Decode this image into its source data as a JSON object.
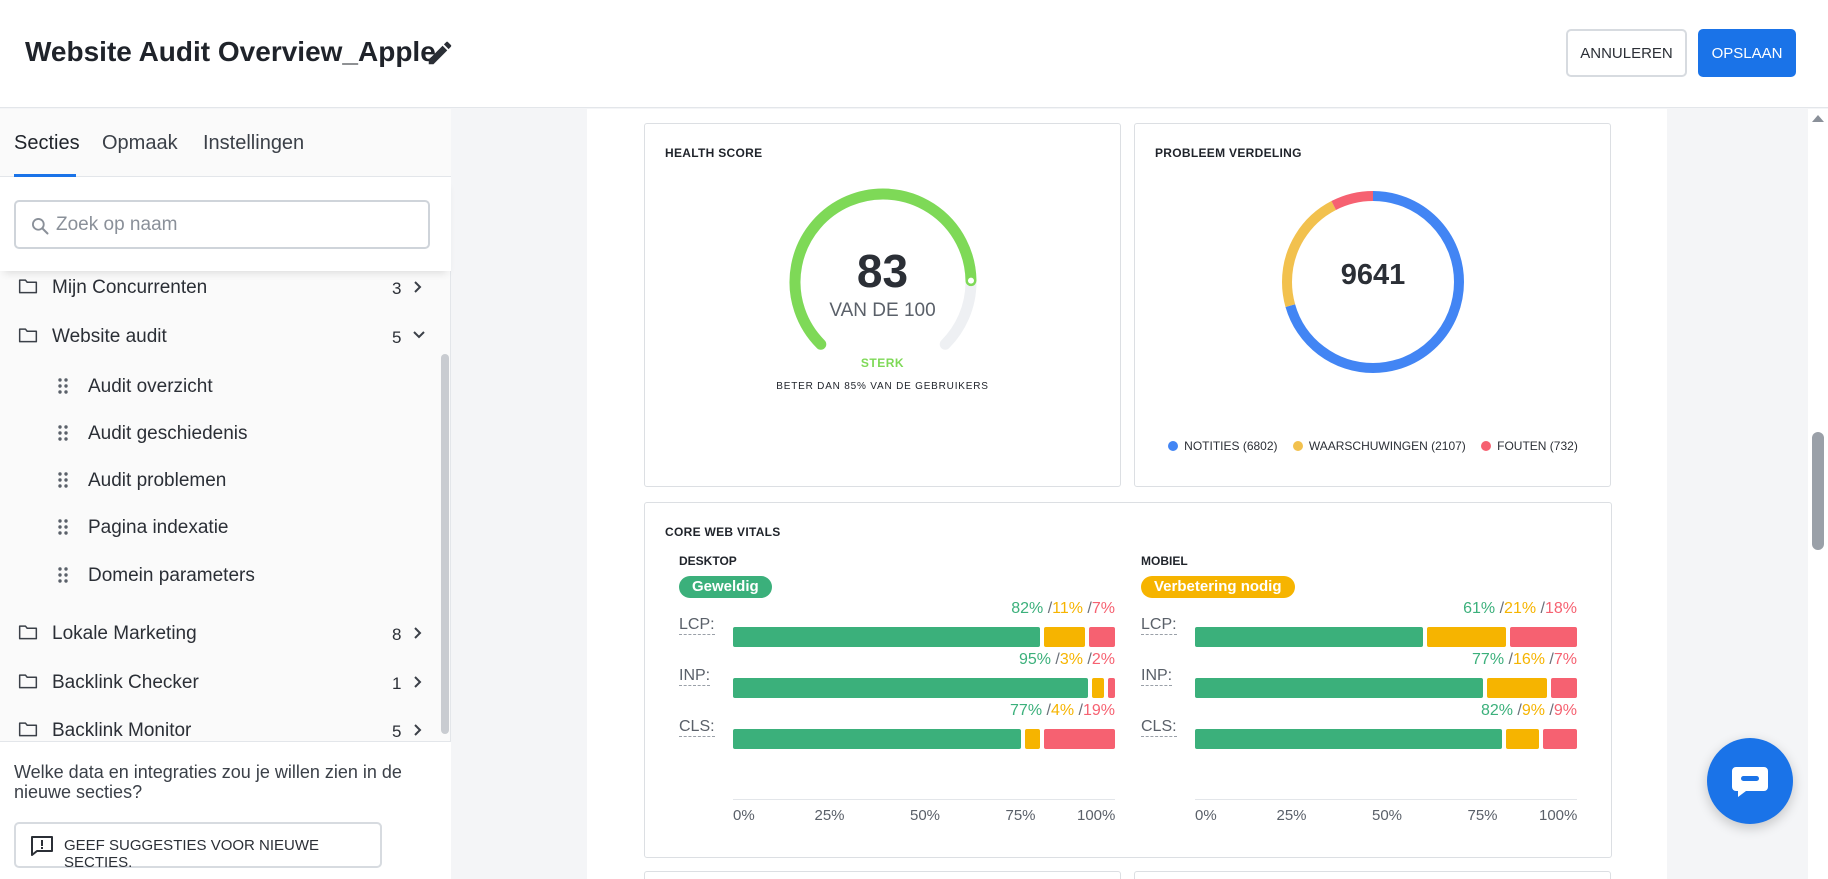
{
  "header": {
    "title": "Website Audit Overview_Apple",
    "cancel_label": "ANNULEREN",
    "save_label": "OPSLAAN"
  },
  "sidebar": {
    "tabs": [
      "Secties",
      "Opmaak",
      "Instellingen"
    ],
    "active_tab": "Secties",
    "search_placeholder": "Zoek op naam",
    "items": [
      {
        "label": "Mijn Concurrenten",
        "count": "3",
        "expanded": false
      },
      {
        "label": "Website audit",
        "count": "5",
        "expanded": true,
        "children": [
          "Audit overzicht",
          "Audit geschiedenis",
          "Audit problemen",
          "Pagina indexatie",
          "Domein parameters"
        ]
      },
      {
        "label": "Lokale Marketing",
        "count": "8",
        "expanded": false
      },
      {
        "label": "Backlink Checker",
        "count": "1",
        "expanded": false
      },
      {
        "label": "Backlink Monitor",
        "count": "5",
        "expanded": false
      }
    ],
    "footer_text": "Welke data en integraties zou je willen zien in de nieuwe secties?",
    "suggest_button": "GEEF SUGGESTIES VOOR NIEUWE SECTIES."
  },
  "health": {
    "title": "HEALTH SCORE",
    "score": "83",
    "out_of": "VAN DE 100",
    "status": "STERK",
    "note": "BETER DAN 85% VAN DE GEBRUIKERS",
    "score_fraction": 0.83,
    "color": "#7ed957"
  },
  "problems": {
    "title": "PROBLEEM VERDELING",
    "total": "9641",
    "legend": [
      {
        "label": "NOTITIES (6802)",
        "value": 6802,
        "color": "#4285f4"
      },
      {
        "label": "WAARSCHUWINGEN (2107)",
        "value": 2107,
        "color": "#f2c14e"
      },
      {
        "label": "FOUTEN (732)",
        "value": 732,
        "color": "#f66171"
      }
    ]
  },
  "cwv": {
    "title": "CORE WEB VITALS",
    "axis_ticks": [
      "0%",
      "25%",
      "50%",
      "75%",
      "100%"
    ],
    "desktop": {
      "label": "DESKTOP",
      "badge": "Geweldig",
      "badge_color": "#3bb07b",
      "metrics": [
        {
          "name": "LCP:",
          "good": 82,
          "ok": 11,
          "poor": 7,
          "good_label": "82%",
          "ok_label": "11%",
          "poor_label": "7%"
        },
        {
          "name": "INP:",
          "good": 95,
          "ok": 3,
          "poor": 2,
          "good_label": "95%",
          "ok_label": "3%",
          "poor_label": "2%"
        },
        {
          "name": "CLS:",
          "good": 77,
          "ok": 4,
          "poor": 19,
          "good_label": "77%",
          "ok_label": "4%",
          "poor_label": "19%"
        }
      ]
    },
    "mobile": {
      "label": "MOBIEL",
      "badge": "Verbetering nodig",
      "badge_color": "#f6b400",
      "metrics": [
        {
          "name": "LCP:",
          "good": 61,
          "ok": 21,
          "poor": 18,
          "good_label": "61%",
          "ok_label": "21%",
          "poor_label": "18%"
        },
        {
          "name": "INP:",
          "good": 77,
          "ok": 16,
          "poor": 7,
          "good_label": "77%",
          "ok_label": "16%",
          "poor_label": "7%"
        },
        {
          "name": "CLS:",
          "good": 82,
          "ok": 9,
          "poor": 9,
          "good_label": "82%",
          "ok_label": "9%",
          "poor_label": "9%"
        }
      ]
    },
    "colors": {
      "good": "#3bb07b",
      "ok": "#f6b400",
      "poor": "#f66171"
    }
  }
}
